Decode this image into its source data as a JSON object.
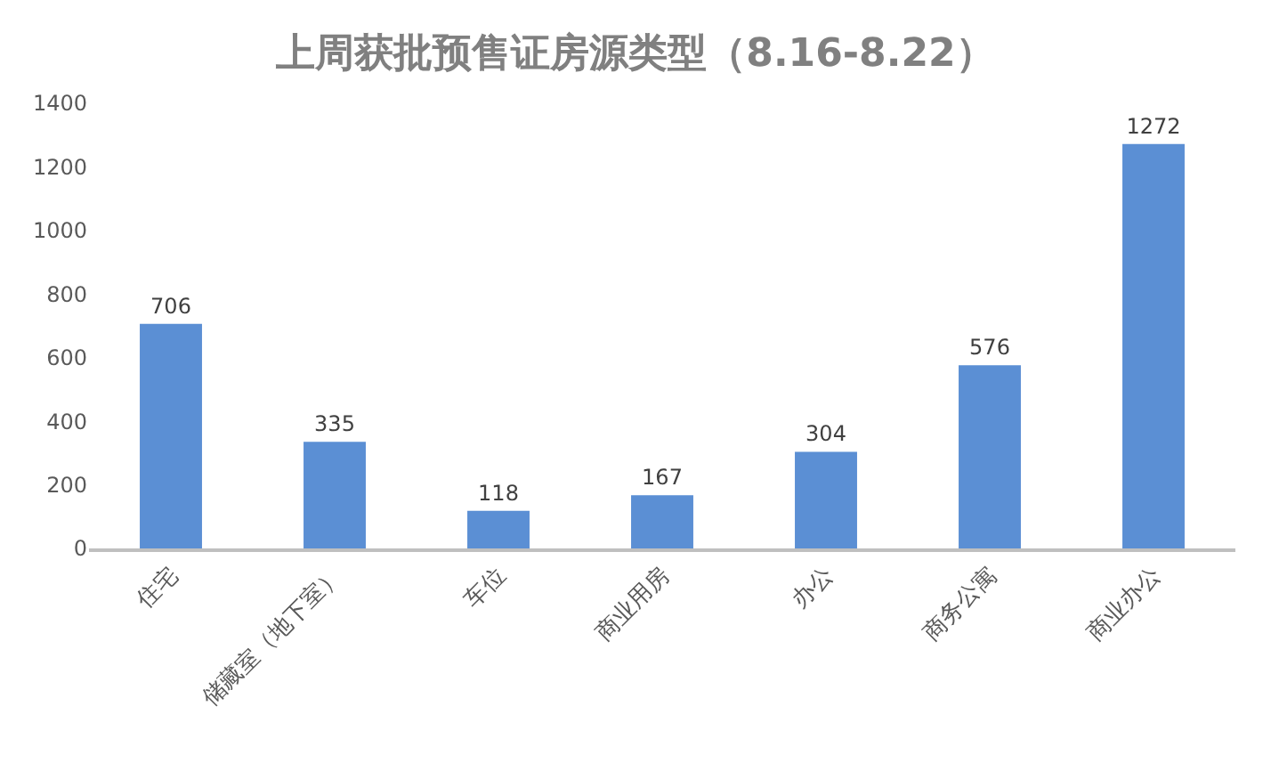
{
  "chart_data": {
    "type": "bar",
    "title": "上周获批预售证房源类型（8.16-8.22）",
    "categories": [
      "住宅",
      "储藏室（地下室）",
      "车位",
      "商业用房",
      "办公",
      "商务公寓",
      "商业办公"
    ],
    "values": [
      706,
      335,
      118,
      167,
      304,
      576,
      1272
    ],
    "color": "#5b8fd4",
    "ylim": [
      0,
      1400
    ],
    "yticks": [
      0,
      200,
      400,
      600,
      800,
      1000,
      1200,
      1400
    ],
    "grid": false,
    "data_labels": true,
    "legend": false
  }
}
